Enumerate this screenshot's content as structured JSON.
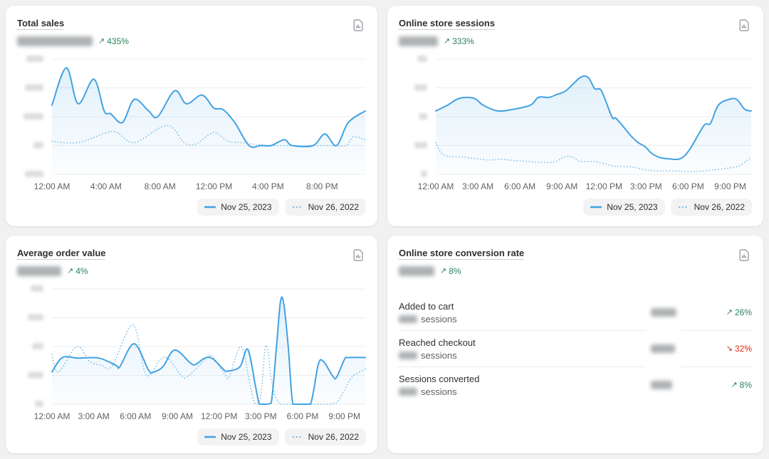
{
  "icons": {
    "arrow_up": "↗",
    "arrow_down": "↘",
    "report_icon": "document-with-bar-chart"
  },
  "colors": {
    "page_bg": "#f1f1f1",
    "card_bg": "#ffffff",
    "current_line": "#43a2e2",
    "previous_line": "#85c3ec",
    "positive": "#29845a",
    "negative": "#d72c0d",
    "gridline": "#ececec",
    "axis_text": "#616161",
    "title_text": "#303030"
  },
  "cards": [
    {
      "title": "Total sales",
      "value_redacted": true,
      "change": "435%",
      "direction": "up"
    },
    {
      "title": "Online store sessions",
      "value_redacted": true,
      "change": "333%",
      "direction": "up"
    },
    {
      "title": "Average order value",
      "value_redacted": true,
      "change": "4%",
      "direction": "up"
    },
    {
      "title": "Online store conversion rate",
      "value_redacted": true,
      "change": "8%",
      "direction": "up"
    }
  ],
  "chart_data": [
    {
      "type": "line",
      "title": "Total sales",
      "x_ticks": [
        "12:00 AM",
        "4:00 AM",
        "8:00 AM",
        "12:00 PM",
        "4:00 PM",
        "8:00 PM"
      ],
      "x_tick_hours": [
        0,
        4,
        8,
        12,
        16,
        20
      ],
      "x_axis_hours": 23.2,
      "y_axis_labels": "redacted (blurred)",
      "y_unit": "gridline units (0 = bottom gridline, 4 = top gridline; actual values blurred)",
      "ylim": [
        0,
        4
      ],
      "grid": true,
      "legend_position": "bottom-right",
      "series": [
        {
          "name": "Nov 25, 2023",
          "style": "solid",
          "x": [
            0,
            1.1,
            2,
            3.2,
            4,
            4.5,
            5.4,
            6.3,
            7.4,
            8.1,
            9.4,
            10.3,
            11.5,
            12.4,
            13.1,
            14,
            15.1,
            16,
            16.8,
            17.8,
            18.4,
            20,
            20.9,
            21.8,
            22.7,
            24
          ],
          "y": [
            2.4,
            3.7,
            2.45,
            3.3,
            2.2,
            2.1,
            1.8,
            2.6,
            2.2,
            2.0,
            2.9,
            2.45,
            2.75,
            2.3,
            2.25,
            1.8,
            1.0,
            1.0,
            1.0,
            1.2,
            1.0,
            1.0,
            1.4,
            1.0,
            1.8,
            2.2
          ]
        },
        {
          "name": "Nov 26, 2022",
          "style": "dotted",
          "x": [
            0,
            2,
            4.2,
            5,
            6.3,
            8.4,
            9.3,
            10.1,
            11,
            12.4,
            13.5,
            14.5,
            15.5,
            17,
            19,
            21,
            22.5,
            23.1,
            24
          ],
          "y": [
            1.15,
            1.1,
            1.45,
            1.45,
            1.1,
            1.65,
            1.6,
            1.1,
            1.05,
            1.45,
            1.15,
            1.1,
            1.05,
            1.0,
            1.0,
            1.0,
            1.0,
            1.3,
            1.2
          ]
        }
      ]
    },
    {
      "type": "line",
      "title": "Online store sessions",
      "x_ticks": [
        "12:00 AM",
        "3:00 AM",
        "6:00 AM",
        "9:00 AM",
        "12:00 PM",
        "3:00 PM",
        "6:00 PM",
        "9:00 PM"
      ],
      "x_tick_hours": [
        0,
        3,
        6,
        9,
        12,
        15,
        18,
        21
      ],
      "x_axis_hours": 22.5,
      "y_axis_labels": "redacted (blurred)",
      "y_unit": "gridline units (0 = bottom gridline, 4 = top gridline; actual values blurred)",
      "ylim": [
        0,
        4
      ],
      "grid": true,
      "legend_position": "bottom-right",
      "series": [
        {
          "name": "Nov 25, 2023",
          "style": "solid",
          "x": [
            0,
            0.9,
            1.8,
            2.9,
            3.6,
            4.7,
            5.8,
            7.2,
            7.8,
            8.6,
            9.2,
            9.9,
            11,
            11.6,
            12.1,
            12.6,
            13.4,
            13.7,
            14.3,
            14.8,
            15.4,
            15.9,
            16.4,
            17,
            17.7,
            18.6,
            19.3,
            20.4,
            20.9,
            21.5,
            22.3,
            22.9,
            23.5,
            24
          ],
          "y": [
            2.2,
            2.4,
            2.64,
            2.64,
            2.4,
            2.2,
            2.25,
            2.4,
            2.67,
            2.67,
            2.77,
            2.9,
            3.36,
            3.36,
            2.97,
            2.9,
            2.0,
            1.95,
            1.64,
            1.36,
            1.1,
            0.97,
            0.74,
            0.59,
            0.54,
            0.54,
            0.85,
            1.69,
            1.77,
            2.4,
            2.6,
            2.6,
            2.26,
            2.2
          ]
        },
        {
          "name": "Nov 26, 2022",
          "style": "dotted",
          "x": [
            0,
            0.4,
            1,
            2,
            3,
            4,
            5,
            6,
            7,
            8,
            9,
            9.9,
            10.4,
            11,
            12,
            12.6,
            13.4,
            14,
            15,
            16,
            17,
            18,
            19,
            20,
            21,
            22,
            23,
            23.6,
            24
          ],
          "y": [
            1.1,
            0.75,
            0.62,
            0.6,
            0.55,
            0.5,
            0.52,
            0.48,
            0.45,
            0.42,
            0.43,
            0.62,
            0.6,
            0.45,
            0.45,
            0.4,
            0.3,
            0.28,
            0.25,
            0.15,
            0.12,
            0.12,
            0.1,
            0.1,
            0.15,
            0.2,
            0.28,
            0.45,
            0.6
          ]
        }
      ]
    },
    {
      "type": "line",
      "title": "Average order value",
      "x_ticks": [
        "12:00 AM",
        "3:00 AM",
        "6:00 AM",
        "9:00 AM",
        "12:00 PM",
        "3:00 PM",
        "6:00 PM",
        "9:00 PM"
      ],
      "x_tick_hours": [
        0,
        3,
        6,
        9,
        12,
        15,
        18,
        21
      ],
      "x_axis_hours": 22.5,
      "y_axis_labels": "redacted (blurred)",
      "y_unit": "gridline units (0 = bottom gridline, 4 = top gridline; actual values blurred)",
      "ylim": [
        0,
        4
      ],
      "grid": true,
      "legend_position": "bottom-right",
      "series": [
        {
          "name": "Nov 25, 2023",
          "style": "solid",
          "x": [
            0,
            0.8,
            2,
            3.6,
            4.9,
            5.2,
            6.3,
            7.4,
            7.8,
            8.5,
            9.4,
            10.6,
            11,
            11.7,
            12.3,
            13.2,
            13.5,
            14.4,
            15,
            15.6,
            15.9,
            16.4,
            16.8,
            17.2,
            17.5,
            17.75,
            18.1,
            18.45,
            19,
            19.8,
            20.4,
            20.8,
            21.5,
            21.8,
            22.4,
            22.7,
            24
          ],
          "y": [
            1.12,
            1.62,
            1.6,
            1.6,
            1.35,
            1.3,
            2.1,
            1.18,
            1.12,
            1.3,
            1.88,
            1.43,
            1.38,
            1.6,
            1.58,
            1.18,
            1.15,
            1.3,
            1.9,
            0.6,
            0,
            0,
            0.05,
            2.0,
            3.55,
            3.5,
            2.0,
            0,
            0,
            0,
            1.38,
            1.48,
            0.98,
            0.93,
            1.55,
            1.62,
            1.62
          ]
        },
        {
          "name": "Nov 26, 2022",
          "style": "dotted",
          "x": [
            0,
            0.5,
            1.9,
            2.9,
            3.8,
            4.6,
            6.2,
            7.2,
            8.3,
            8.9,
            9.9,
            10.4,
            11.9,
            12.3,
            13.3,
            13.6,
            14.5,
            15.2,
            15.6,
            16,
            16.4,
            16.9,
            17.5,
            18.5,
            19.8,
            20.9,
            21.8,
            22.9,
            23.5,
            24
          ],
          "y": [
            1.72,
            1.12,
            2.0,
            1.48,
            1.35,
            1.32,
            2.75,
            1.02,
            1.55,
            1.58,
            1.0,
            0.97,
            1.62,
            1.65,
            1.0,
            0.98,
            2.0,
            0.6,
            0,
            0.3,
            2.05,
            0.6,
            0,
            0,
            0,
            0,
            0.05,
            0.9,
            1.1,
            1.22
          ]
        }
      ]
    },
    {
      "type": "table",
      "title": "Online store conversion rate",
      "rows": [
        {
          "label": "Added to cart",
          "sublabel_suffix": "sessions",
          "session_count_redacted": true,
          "value_redacted": true,
          "change": "26%",
          "direction": "up"
        },
        {
          "label": "Reached checkout",
          "sublabel_suffix": "sessions",
          "session_count_redacted": true,
          "value_redacted": true,
          "change": "32%",
          "direction": "down"
        },
        {
          "label": "Sessions converted",
          "sublabel_suffix": "sessions",
          "session_count_redacted": true,
          "value_redacted": true,
          "change": "8%",
          "direction": "up"
        }
      ]
    }
  ]
}
